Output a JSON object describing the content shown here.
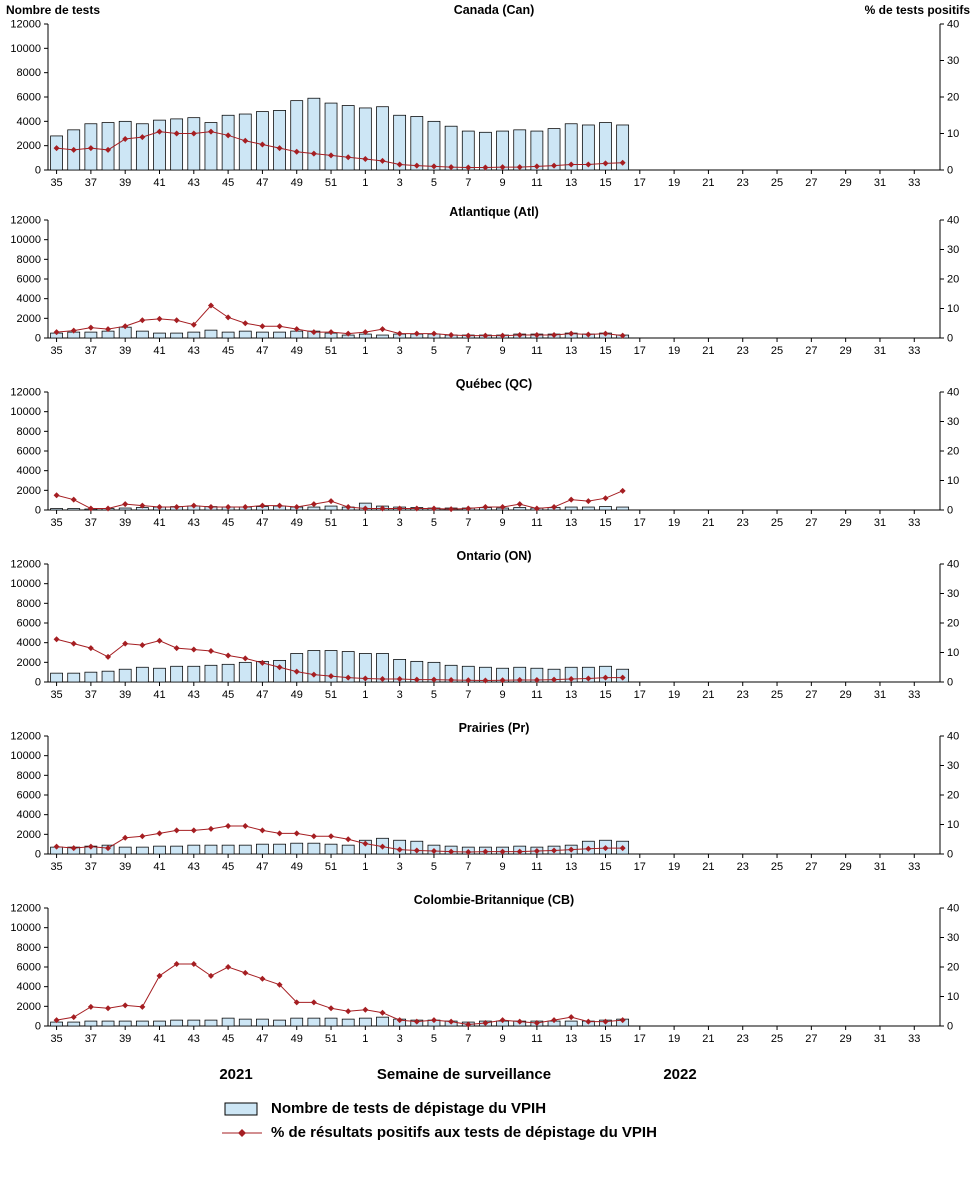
{
  "chart_data": {
    "type": "bar+line",
    "x_label": "Semaine de surveillance",
    "years": {
      "left": "2021",
      "right": "2022"
    },
    "weeks": [
      35,
      36,
      37,
      38,
      39,
      40,
      41,
      42,
      43,
      44,
      45,
      46,
      47,
      48,
      49,
      50,
      51,
      52,
      1,
      2,
      3,
      4,
      5,
      6,
      7,
      8,
      9,
      10,
      11,
      12,
      13,
      14,
      15,
      16,
      17,
      18,
      19,
      20,
      21,
      22,
      23,
      24,
      25,
      26,
      27,
      28,
      29,
      30,
      31,
      32,
      33,
      34
    ],
    "x_tick_labels": [
      35,
      37,
      39,
      41,
      43,
      45,
      47,
      49,
      51,
      1,
      3,
      5,
      7,
      9,
      11,
      13,
      15,
      17,
      19,
      21,
      23,
      25,
      27,
      29,
      31,
      33
    ],
    "left_axis": {
      "title": "Nombre de tests",
      "min": 0,
      "max": 12000,
      "step": 2000,
      "ticks": [
        0,
        2000,
        4000,
        6000,
        8000,
        10000,
        12000
      ]
    },
    "right_axis": {
      "title": "% de tests positifs",
      "min": 0,
      "max": 40,
      "step": 10,
      "ticks": [
        0,
        10,
        20,
        30,
        40
      ]
    },
    "colors": {
      "bar_fill": "#cde6f5",
      "bar_stroke": "#000000",
      "line": "#a51e22"
    },
    "panels": [
      {
        "id": "canada",
        "title": "Canada (Can)",
        "tests": [
          2800,
          3300,
          3800,
          3900,
          4000,
          3800,
          4100,
          4200,
          4300,
          3900,
          4500,
          4600,
          4800,
          4900,
          5700,
          5900,
          5500,
          5300,
          5100,
          5200,
          4500,
          4400,
          4000,
          3600,
          3200,
          3100,
          3200,
          3300,
          3200,
          3400,
          3800,
          3700,
          3900,
          3700
        ],
        "pct_positifs": [
          6,
          5.5,
          6,
          5.5,
          8.5,
          9,
          10.5,
          10,
          10,
          10.5,
          9.5,
          8,
          7,
          6,
          5,
          4.5,
          4,
          3.5,
          3,
          2.5,
          1.5,
          1.2,
          1,
          0.8,
          0.7,
          0.7,
          0.8,
          0.8,
          1,
          1.2,
          1.5,
          1.5,
          1.8,
          2
        ]
      },
      {
        "id": "atlantique",
        "title": "Atlantique (Atl)",
        "tests": [
          500,
          600,
          600,
          700,
          1100,
          700,
          500,
          500,
          600,
          800,
          600,
          700,
          600,
          600,
          700,
          700,
          500,
          300,
          400,
          300,
          400,
          400,
          400,
          300,
          300,
          300,
          300,
          400,
          400,
          400,
          500,
          400,
          500,
          300
        ],
        "pct_positifs": [
          2,
          2.5,
          3.5,
          3,
          4,
          6,
          6.5,
          6,
          4.5,
          11,
          7,
          5,
          4,
          4,
          3,
          2,
          2,
          1.5,
          2,
          3,
          1.5,
          1.5,
          1.5,
          1,
          0.8,
          0.8,
          0.8,
          1,
          1,
          1,
          1.5,
          1.2,
          1.5,
          0.8
        ]
      },
      {
        "id": "quebec",
        "title": "Québec (QC)",
        "tests": [
          150,
          150,
          100,
          150,
          200,
          250,
          300,
          350,
          400,
          350,
          300,
          300,
          350,
          400,
          300,
          300,
          400,
          300,
          700,
          400,
          300,
          250,
          200,
          200,
          200,
          250,
          200,
          250,
          200,
          250,
          300,
          300,
          350,
          300
        ],
        "pct_positifs": [
          5,
          3.5,
          0.5,
          0.5,
          2,
          1.5,
          1,
          1,
          1.5,
          1,
          1,
          1,
          1.5,
          1.5,
          1,
          2,
          3,
          1,
          0.5,
          0.5,
          0.5,
          0.5,
          0.5,
          0.3,
          0.5,
          1,
          1,
          2,
          0.5,
          1,
          3.5,
          3,
          4,
          6.5
        ]
      },
      {
        "id": "ontario",
        "title": "Ontario (ON)",
        "tests": [
          900,
          900,
          1000,
          1100,
          1300,
          1500,
          1400,
          1600,
          1600,
          1700,
          1800,
          2000,
          2100,
          2200,
          2900,
          3200,
          3200,
          3100,
          2900,
          2900,
          2300,
          2100,
          2000,
          1700,
          1600,
          1500,
          1400,
          1500,
          1400,
          1300,
          1500,
          1500,
          1600,
          1300
        ],
        "pct_positifs": [
          14.5,
          13,
          11.5,
          8.5,
          13,
          12.5,
          14,
          11.5,
          11,
          10.5,
          9,
          8,
          6.5,
          5,
          3.5,
          2.5,
          2,
          1.5,
          1.2,
          1,
          1,
          0.8,
          0.8,
          0.7,
          0.6,
          0.5,
          0.6,
          0.7,
          0.7,
          0.8,
          1,
          1.2,
          1.5,
          1.5
        ]
      },
      {
        "id": "prairies",
        "title": "Prairies (Pr)",
        "tests": [
          700,
          700,
          800,
          900,
          700,
          700,
          800,
          800,
          900,
          900,
          900,
          900,
          1000,
          1000,
          1100,
          1100,
          1000,
          900,
          1400,
          1600,
          1400,
          1300,
          900,
          800,
          700,
          700,
          700,
          800,
          700,
          800,
          900,
          1300,
          1400,
          1300
        ],
        "pct_positifs": [
          2.5,
          2,
          2.5,
          2,
          5.5,
          6,
          7,
          8,
          8,
          8.5,
          9.5,
          9.5,
          8,
          7,
          7,
          6,
          6,
          5,
          3.5,
          2.5,
          1.5,
          1.2,
          1,
          0.8,
          0.7,
          0.8,
          0.8,
          0.8,
          1,
          1.2,
          1.5,
          1.8,
          2,
          2
        ]
      },
      {
        "id": "colombie-britannique",
        "title": "Colombie-Britannique (CB)",
        "tests": [
          400,
          400,
          500,
          500,
          500,
          500,
          500,
          600,
          600,
          600,
          800,
          700,
          700,
          600,
          800,
          800,
          800,
          700,
          800,
          900,
          700,
          600,
          600,
          500,
          400,
          500,
          500,
          500,
          500,
          500,
          500,
          500,
          600,
          700
        ],
        "pct_positifs": [
          2,
          3,
          6.5,
          6,
          7,
          6.5,
          17,
          21,
          21,
          17,
          20,
          18,
          16,
          14,
          8,
          8,
          6,
          5,
          5.5,
          4.5,
          2,
          1.5,
          2,
          1.5,
          0.5,
          1,
          2,
          1.5,
          1,
          2,
          3,
          1.5,
          1.5,
          2
        ]
      }
    ],
    "legend": [
      {
        "label": "Nombre de tests de dépistage du VPIH",
        "swatch": "bar"
      },
      {
        "label": "% de résultats positifs aux tests de dépistage du VPIH",
        "swatch": "line"
      }
    ]
  }
}
